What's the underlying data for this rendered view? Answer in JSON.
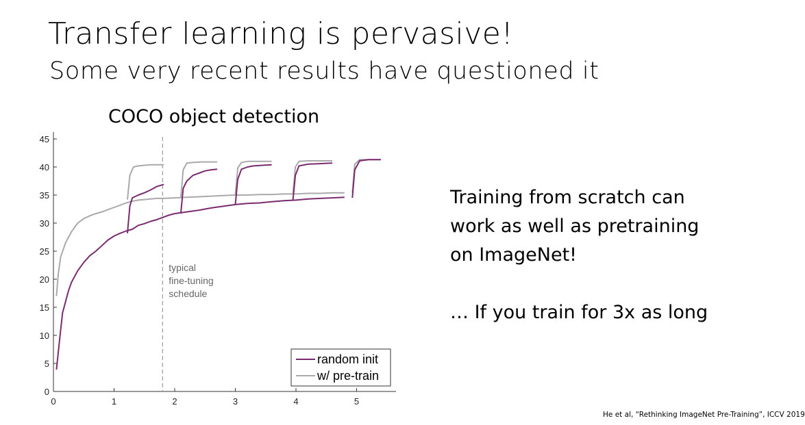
{
  "slide": {
    "title": "Transfer learning is pervasive!",
    "subtitle": "Some very recent results have questioned it",
    "side_text": {
      "lines": [
        "Training from scratch can",
        "work as well as pretraining",
        "on ImageNet!"
      ],
      "conclusion": "… If you train for 3x as long"
    },
    "citation": "He et al, “Rethinking ImageNet Pre-Training”, ICCV 2019"
  },
  "chart_data": {
    "type": "line",
    "title": "COCO object detection",
    "xlabel": "",
    "ylabel": "",
    "xlim": [
      0,
      5.7
    ],
    "ylim": [
      0,
      45
    ],
    "xticks": [
      0,
      1,
      2,
      3,
      4,
      5
    ],
    "yticks": [
      0,
      5,
      10,
      15,
      20,
      25,
      30,
      35,
      40,
      45
    ],
    "grid": false,
    "legend_position": "bottom-right",
    "annotation": {
      "x": 1.8,
      "lines": [
        "typical",
        "fine-tuning",
        "schedule"
      ]
    },
    "series": [
      {
        "name": "random init",
        "color": "#7a2a6e",
        "segments": [
          [
            [
              0.05,
              3.9
            ],
            [
              0.1,
              9
            ],
            [
              0.15,
              14
            ],
            [
              0.2,
              16
            ],
            [
              0.25,
              18
            ],
            [
              0.3,
              19.5
            ],
            [
              0.4,
              21.5
            ],
            [
              0.5,
              23
            ],
            [
              0.6,
              24.2
            ],
            [
              0.7,
              25
            ],
            [
              0.8,
              26
            ],
            [
              0.9,
              27
            ],
            [
              1.0,
              27.7
            ],
            [
              1.1,
              28.2
            ],
            [
              1.2,
              28.6
            ],
            [
              1.3,
              28.9
            ],
            [
              1.4,
              29.6
            ],
            [
              1.5,
              29.9
            ],
            [
              1.6,
              30.3
            ],
            [
              1.7,
              30.6
            ],
            [
              1.8,
              31
            ],
            [
              1.9,
              31.4
            ],
            [
              2.0,
              31.7
            ],
            [
              2.2,
              32
            ],
            [
              2.4,
              32.3
            ],
            [
              2.6,
              32.7
            ],
            [
              2.8,
              33
            ],
            [
              3.0,
              33.3
            ],
            [
              3.2,
              33.5
            ],
            [
              3.4,
              33.6
            ],
            [
              3.6,
              33.8
            ],
            [
              3.8,
              34
            ],
            [
              4.0,
              34.1
            ],
            [
              4.2,
              34.3
            ],
            [
              4.4,
              34.4
            ],
            [
              4.6,
              34.5
            ],
            [
              4.8,
              34.6
            ]
          ],
          [
            [
              1.22,
              28.2
            ],
            [
              1.26,
              33
            ],
            [
              1.3,
              34.5
            ],
            [
              1.4,
              35
            ],
            [
              1.5,
              35.4
            ],
            [
              1.6,
              35.9
            ],
            [
              1.7,
              36.5
            ],
            [
              1.82,
              36.9
            ]
          ],
          [
            [
              2.1,
              31.7
            ],
            [
              2.14,
              36.2
            ],
            [
              2.2,
              37.5
            ],
            [
              2.3,
              38.5
            ],
            [
              2.4,
              38.9
            ],
            [
              2.5,
              39.3
            ],
            [
              2.6,
              39.5
            ],
            [
              2.7,
              39.6
            ]
          ],
          [
            [
              3.0,
              33.3
            ],
            [
              3.04,
              37.8
            ],
            [
              3.1,
              39.6
            ],
            [
              3.2,
              40
            ],
            [
              3.3,
              40.2
            ],
            [
              3.45,
              40.3
            ],
            [
              3.6,
              40.4
            ]
          ],
          [
            [
              3.95,
              34.1
            ],
            [
              3.99,
              38.5
            ],
            [
              4.05,
              40.2
            ],
            [
              4.2,
              40.5
            ],
            [
              4.4,
              40.6
            ],
            [
              4.6,
              40.7
            ]
          ],
          [
            [
              4.93,
              34.5
            ],
            [
              4.97,
              39.5
            ],
            [
              5.05,
              41.1
            ],
            [
              5.2,
              41.3
            ],
            [
              5.4,
              41.3
            ]
          ]
        ]
      },
      {
        "name": "w/ pre-train",
        "color": "#a9a9a9",
        "segments": [
          [
            [
              0.05,
              17
            ],
            [
              0.08,
              21
            ],
            [
              0.12,
              24
            ],
            [
              0.2,
              26.5
            ],
            [
              0.3,
              28.5
            ],
            [
              0.4,
              30
            ],
            [
              0.5,
              30.8
            ],
            [
              0.6,
              31.3
            ],
            [
              0.7,
              31.7
            ],
            [
              0.8,
              32
            ],
            [
              0.9,
              32.4
            ],
            [
              1.0,
              32.8
            ],
            [
              1.1,
              33.2
            ],
            [
              1.2,
              33.6
            ],
            [
              1.3,
              33.9
            ],
            [
              1.4,
              34.1
            ],
            [
              1.5,
              34.2
            ],
            [
              1.6,
              34.3
            ],
            [
              1.7,
              34.4
            ],
            [
              1.8,
              34.4
            ],
            [
              2.0,
              34.5
            ],
            [
              2.2,
              34.6
            ],
            [
              2.4,
              34.7
            ],
            [
              2.6,
              34.8
            ],
            [
              2.8,
              34.9
            ],
            [
              3.0,
              35
            ],
            [
              3.2,
              35
            ],
            [
              3.4,
              35.1
            ],
            [
              3.6,
              35.1
            ],
            [
              3.8,
              35.2
            ],
            [
              4.0,
              35.2
            ],
            [
              4.2,
              35.3
            ],
            [
              4.4,
              35.3
            ],
            [
              4.6,
              35.4
            ],
            [
              4.8,
              35.4
            ]
          ],
          [
            [
              1.22,
              34.2
            ],
            [
              1.26,
              38.5
            ],
            [
              1.32,
              40
            ],
            [
              1.4,
              40.2
            ],
            [
              1.5,
              40.3
            ],
            [
              1.6,
              40.4
            ],
            [
              1.7,
              40.4
            ],
            [
              1.82,
              40.4
            ]
          ],
          [
            [
              2.1,
              34.5
            ],
            [
              2.14,
              39.5
            ],
            [
              2.2,
              40.7
            ],
            [
              2.3,
              40.8
            ],
            [
              2.45,
              40.9
            ],
            [
              2.6,
              40.9
            ],
            [
              2.7,
              40.9
            ]
          ],
          [
            [
              3.0,
              35
            ],
            [
              3.04,
              39.8
            ],
            [
              3.1,
              40.8
            ],
            [
              3.2,
              41
            ],
            [
              3.35,
              41
            ],
            [
              3.5,
              41
            ],
            [
              3.6,
              41
            ]
          ],
          [
            [
              3.95,
              35.2
            ],
            [
              3.99,
              40
            ],
            [
              4.05,
              41
            ],
            [
              4.2,
              41.1
            ],
            [
              4.4,
              41.1
            ],
            [
              4.6,
              41.1
            ]
          ],
          [
            [
              4.93,
              35.4
            ],
            [
              4.97,
              40.5
            ],
            [
              5.05,
              41.3
            ],
            [
              5.2,
              41.3
            ],
            [
              5.4,
              41.3
            ]
          ]
        ]
      }
    ]
  }
}
